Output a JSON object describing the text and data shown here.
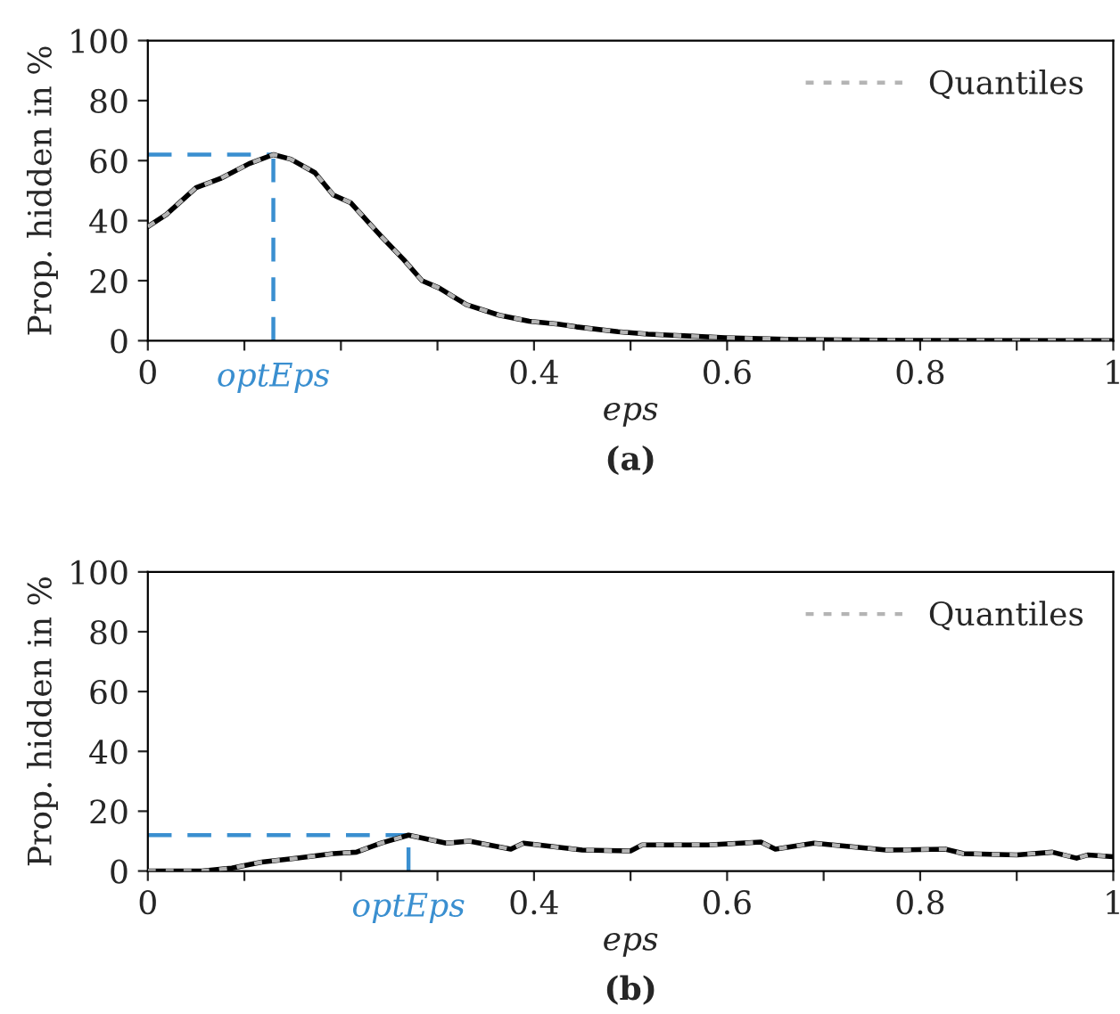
{
  "chart_data": [
    {
      "type": "line",
      "title": "(a)",
      "xlabel": "eps",
      "ylabel": "Prop. hidden in %",
      "xlim": [
        0,
        1
      ],
      "ylim": [
        0,
        100
      ],
      "xticks": [
        0,
        {
          "value": 0.1,
          "label": null
        },
        {
          "value": 0.2,
          "label": null
        },
        {
          "value": 0.3,
          "label": null
        },
        0.4,
        {
          "value": 0.5,
          "label": null
        },
        0.6,
        {
          "value": 0.7,
          "label": null
        },
        0.8,
        {
          "value": 0.9,
          "label": null
        },
        1
      ],
      "yticks": [
        0,
        20,
        40,
        60,
        80,
        100
      ],
      "grid": false,
      "legend": "top right",
      "line_style": "solid",
      "marker": "none",
      "series": [
        {
          "color": "#000000",
          "x": [
            0,
            0.019,
            0.05,
            0.075,
            0.105,
            0.13,
            0.148,
            0.173,
            0.192,
            0.21,
            0.241,
            0.265,
            0.284,
            0.302,
            0.33,
            0.364,
            0.395,
            0.425,
            0.444,
            0.487,
            0.518,
            0.598,
            0.67,
            0.8,
            1
          ],
          "values": [
            38,
            42,
            51,
            54,
            59,
            62,
            60.5,
            56,
            48.6,
            46,
            35,
            27,
            20,
            17.5,
            12,
            8.5,
            6.5,
            5.5,
            4.6,
            3,
            2.2,
            1,
            0.4,
            0.1,
            0
          ]
        },
        {
          "name": "Quantiles",
          "color": "#b4b4b4",
          "line_style": "dotted",
          "x": [
            0,
            0.019,
            0.05,
            0.075,
            0.105,
            0.13,
            0.148,
            0.173,
            0.192,
            0.21,
            0.241,
            0.265,
            0.284,
            0.302,
            0.33,
            0.364,
            0.395,
            0.425,
            0.444,
            0.487,
            0.518,
            0.598,
            0.67,
            0.8,
            1
          ],
          "values": [
            38,
            42,
            51,
            54,
            59,
            62,
            60.5,
            56,
            48.6,
            46,
            35,
            27,
            20,
            17.5,
            12,
            8.5,
            6.5,
            5.5,
            4.6,
            3,
            2.2,
            1,
            0.4,
            0.1,
            0
          ]
        }
      ],
      "ref_lines": [
        {
          "axis": "x",
          "value": 0.13,
          "label": "optEps",
          "color": "#3a8fd0",
          "line_style": "dashed"
        },
        {
          "axis": "y",
          "value": 62,
          "color": "#3a8fd0",
          "line_style": "dashed"
        }
      ]
    },
    {
      "type": "line",
      "title": "(b)",
      "xlabel": "eps",
      "ylabel": "Prop. hidden in %",
      "xlim": [
        0,
        1
      ],
      "ylim": [
        0,
        100
      ],
      "xticks": [
        0,
        {
          "value": 0.1,
          "label": null
        },
        {
          "value": 0.2,
          "label": null
        },
        {
          "value": 0.3,
          "label": null
        },
        0.4,
        {
          "value": 0.5,
          "label": null
        },
        0.6,
        {
          "value": 0.7,
          "label": null
        },
        0.8,
        {
          "value": 0.9,
          "label": null
        },
        1
      ],
      "yticks": [
        0,
        20,
        40,
        60,
        80,
        100
      ],
      "grid": false,
      "legend": "top right",
      "line_style": "solid",
      "marker": "none",
      "series": [
        {
          "color": "#000000",
          "x": [
            0,
            0.056,
            0.087,
            0.118,
            0.155,
            0.192,
            0.216,
            0.241,
            0.27,
            0.309,
            0.333,
            0.376,
            0.389,
            0.45,
            0.5,
            0.512,
            0.58,
            0.635,
            0.65,
            0.69,
            0.765,
            0.826,
            0.845,
            0.9,
            0.937,
            0.962,
            0.974,
            1
          ],
          "values": [
            0,
            0,
            1,
            3,
            4.3,
            5.8,
            6.3,
            9.3,
            12,
            9.3,
            10,
            7.3,
            9.3,
            7,
            6.7,
            8.7,
            8.7,
            9.7,
            7.3,
            9.3,
            7,
            7.3,
            5.8,
            5.4,
            6.3,
            4.3,
            5.4,
            4.8
          ]
        },
        {
          "name": "Quantiles",
          "color": "#b4b4b4",
          "line_style": "dotted",
          "x": [
            0,
            0.056,
            0.087,
            0.118,
            0.155,
            0.192,
            0.216,
            0.241,
            0.27,
            0.309,
            0.333,
            0.376,
            0.389,
            0.45,
            0.5,
            0.512,
            0.58,
            0.635,
            0.65,
            0.69,
            0.765,
            0.826,
            0.845,
            0.9,
            0.937,
            0.962,
            0.974,
            1
          ],
          "values": [
            0,
            0,
            1,
            3,
            4.3,
            5.8,
            6.3,
            9.3,
            12,
            9.3,
            10,
            7.3,
            9.3,
            7,
            6.7,
            8.7,
            8.7,
            9.7,
            7.3,
            9.3,
            7,
            7.3,
            5.8,
            5.4,
            6.3,
            4.3,
            5.4,
            4.8
          ]
        }
      ],
      "ref_lines": [
        {
          "axis": "x",
          "value": 0.27,
          "label": "optEps",
          "color": "#3a8fd0",
          "line_style": "dashed"
        },
        {
          "axis": "y",
          "value": 12,
          "color": "#3a8fd0",
          "line_style": "dashed"
        }
      ]
    }
  ]
}
